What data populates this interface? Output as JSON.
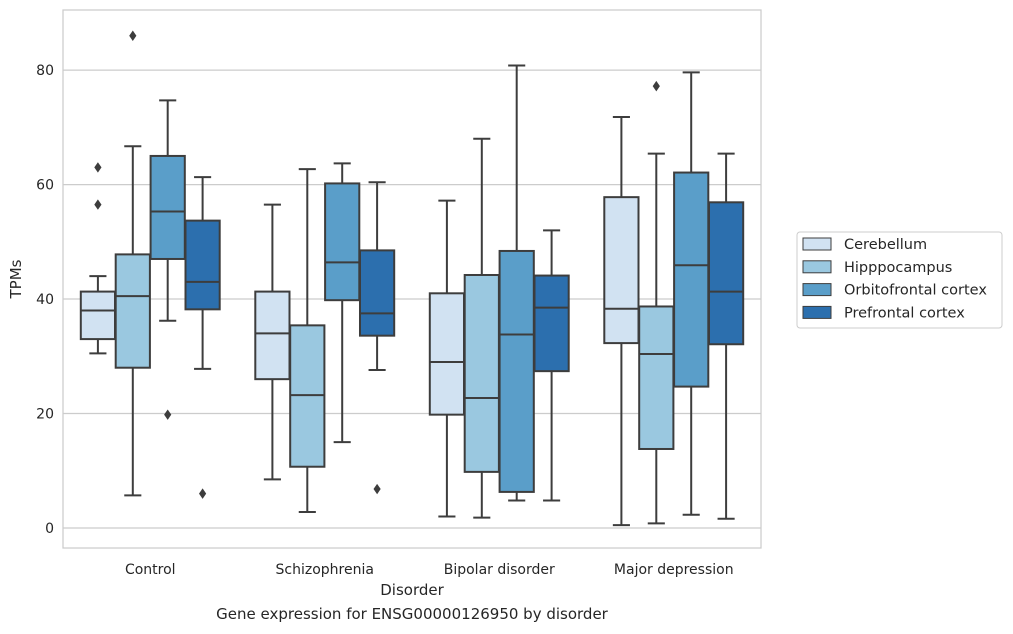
{
  "caption": "Gene expression for ENSG00000126950 by disorder",
  "chart_data": {
    "type": "box",
    "xlabel": "Disorder",
    "ylabel": "TPMs",
    "ylim": [
      -3.5,
      90.5
    ],
    "yticks": [
      0,
      20,
      40,
      60,
      80
    ],
    "categories": [
      "Control",
      "Schizophrenia",
      "Bipolar disorder",
      "Major depression"
    ],
    "grid": "horizontal",
    "legend_position": "right",
    "series": [
      {
        "name": "Cerebellum",
        "color": "#d1e2f2",
        "boxes": [
          {
            "whislo": 30.5,
            "q1": 33.0,
            "median": 38.0,
            "q3": 41.3,
            "whishi": 44.0,
            "fliers": [
              56.5,
              63.0
            ]
          },
          {
            "whislo": 8.5,
            "q1": 26.0,
            "median": 34.0,
            "q3": 41.3,
            "whishi": 56.5,
            "fliers": []
          },
          {
            "whislo": 2.0,
            "q1": 19.8,
            "median": 29.0,
            "q3": 41.0,
            "whishi": 57.2,
            "fliers": []
          },
          {
            "whislo": 0.5,
            "q1": 32.3,
            "median": 38.3,
            "q3": 57.8,
            "whishi": 71.8,
            "fliers": []
          }
        ]
      },
      {
        "name": "Hipppocampus",
        "color": "#9ac8e0",
        "boxes": [
          {
            "whislo": 5.7,
            "q1": 28.0,
            "median": 40.5,
            "q3": 47.8,
            "whishi": 66.7,
            "fliers": [
              86.0
            ]
          },
          {
            "whislo": 2.8,
            "q1": 10.7,
            "median": 23.2,
            "q3": 35.4,
            "whishi": 62.7,
            "fliers": []
          },
          {
            "whislo": 1.8,
            "q1": 9.8,
            "median": 22.7,
            "q3": 44.2,
            "whishi": 68.0,
            "fliers": []
          },
          {
            "whislo": 0.8,
            "q1": 13.8,
            "median": 30.4,
            "q3": 38.7,
            "whishi": 65.4,
            "fliers": [
              77.2
            ]
          }
        ]
      },
      {
        "name": "Orbitofrontal cortex",
        "color": "#5a9ec9",
        "boxes": [
          {
            "whislo": 36.2,
            "q1": 47.0,
            "median": 55.3,
            "q3": 65.0,
            "whishi": 74.7,
            "fliers": [
              19.8
            ]
          },
          {
            "whislo": 15.0,
            "q1": 39.8,
            "median": 46.4,
            "q3": 60.2,
            "whishi": 63.7,
            "fliers": []
          },
          {
            "whislo": 4.8,
            "q1": 6.3,
            "median": 33.8,
            "q3": 48.4,
            "whishi": 80.8,
            "fliers": []
          },
          {
            "whislo": 2.3,
            "q1": 24.7,
            "median": 45.9,
            "q3": 62.1,
            "whishi": 79.6,
            "fliers": []
          }
        ]
      },
      {
        "name": "Prefrontal cortex",
        "color": "#2c6fae",
        "boxes": [
          {
            "whislo": 27.8,
            "q1": 38.2,
            "median": 43.0,
            "q3": 53.7,
            "whishi": 61.3,
            "fliers": [
              6.0
            ]
          },
          {
            "whislo": 27.6,
            "q1": 33.6,
            "median": 37.5,
            "q3": 48.5,
            "whishi": 60.4,
            "fliers": [
              6.8
            ]
          },
          {
            "whislo": 4.8,
            "q1": 27.4,
            "median": 38.5,
            "q3": 44.1,
            "whishi": 52.0,
            "fliers": []
          },
          {
            "whislo": 1.6,
            "q1": 32.1,
            "median": 41.3,
            "q3": 56.9,
            "whishi": 65.4,
            "fliers": []
          }
        ]
      }
    ]
  }
}
